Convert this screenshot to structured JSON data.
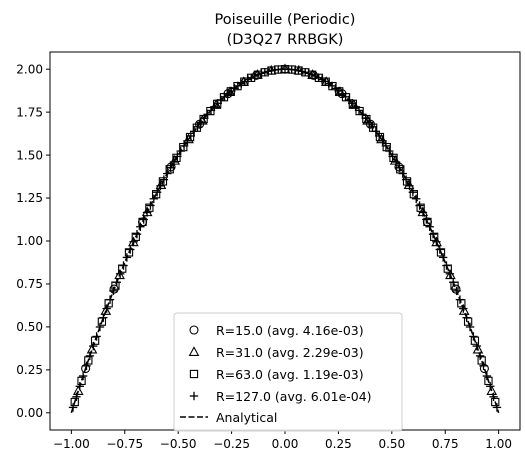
{
  "chart_data": {
    "type": "scatter",
    "title": [
      "Poiseuille (Periodic)",
      "(D3Q27 RRBGK)"
    ],
    "xlabel": "",
    "ylabel": "",
    "xlim": [
      -1.1,
      1.1
    ],
    "ylim": [
      -0.1,
      2.1
    ],
    "xticks": [
      -1.0,
      -0.75,
      -0.5,
      -0.25,
      0.0,
      0.25,
      0.5,
      0.75,
      1.0
    ],
    "xtick_labels": [
      "−1.00",
      "−0.75",
      "−0.50",
      "−0.25",
      "0.00",
      "0.25",
      "0.50",
      "0.75",
      "1.00"
    ],
    "yticks": [
      0.0,
      0.25,
      0.5,
      0.75,
      1.0,
      1.25,
      1.5,
      1.75,
      2.0
    ],
    "ytick_labels": [
      "0.00",
      "0.25",
      "0.50",
      "0.75",
      "1.00",
      "1.25",
      "1.50",
      "1.75",
      "2.00"
    ],
    "grid": false,
    "legend_position": "bottom-center",
    "series": [
      {
        "name": "R=15.0 (avg. 4.16e-03)",
        "marker": "circle",
        "n_points": 15,
        "formula": "u = 2(1 - x²)"
      },
      {
        "name": "R=31.0 (avg. 2.29e-03)",
        "marker": "triangle",
        "n_points": 31,
        "formula": "u = 2(1 - x²)"
      },
      {
        "name": "R=63.0 (avg. 1.19e-03)",
        "marker": "square",
        "n_points": 63,
        "formula": "u = 2(1 - x²)"
      },
      {
        "name": "R=127.0 (avg. 6.01e-04)",
        "marker": "plus",
        "n_points": 127,
        "formula": "u = 2(1 - x²)"
      },
      {
        "name": "Analytical",
        "marker": "dashed-line",
        "formula": "u = 2(1 - x²)"
      }
    ],
    "colors": {
      "markers": "#000000",
      "axes": "#000000",
      "background": "#ffffff"
    }
  }
}
